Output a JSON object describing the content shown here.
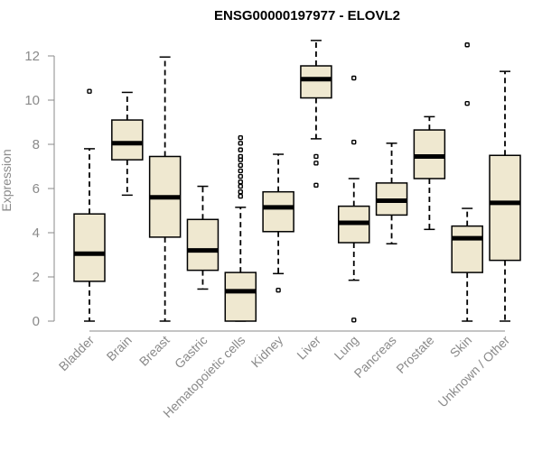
{
  "chart_data": {
    "type": "boxplot",
    "title": "ENSG00000197977 - ELOVL2",
    "xlabel": "",
    "ylabel": "Expression",
    "ylim": [
      0,
      12.5
    ],
    "yticks": [
      0,
      2,
      4,
      6,
      8,
      10,
      12
    ],
    "box_color": "#efe8d0",
    "categories": [
      "Bladder",
      "Brain",
      "Breast",
      "Gastric",
      "Hematopoietic cells",
      "Kidney",
      "Liver",
      "Lung",
      "Pancreas",
      "Prostate",
      "Skin",
      "Unknown / Other"
    ],
    "boxes": [
      {
        "min": 0.0,
        "q1": 1.8,
        "median": 3.05,
        "q3": 4.85,
        "max": 7.8,
        "outliers": [
          10.4
        ]
      },
      {
        "min": 5.7,
        "q1": 7.3,
        "median": 8.05,
        "q3": 9.1,
        "max": 10.35,
        "outliers": []
      },
      {
        "min": 0.0,
        "q1": 3.8,
        "median": 5.6,
        "q3": 7.45,
        "max": 11.95,
        "outliers": []
      },
      {
        "min": 1.45,
        "q1": 2.3,
        "median": 3.2,
        "q3": 4.6,
        "max": 6.1,
        "outliers": []
      },
      {
        "min": 0.0,
        "q1": 0.0,
        "median": 1.35,
        "q3": 2.2,
        "max": 5.15,
        "outliers": [
          5.65,
          5.85,
          6.1,
          6.3,
          6.55,
          6.8,
          7.05,
          7.3,
          7.45,
          7.75,
          8.05,
          8.3
        ]
      },
      {
        "min": 2.15,
        "q1": 4.05,
        "median": 5.15,
        "q3": 5.85,
        "max": 7.55,
        "outliers": [
          1.4
        ]
      },
      {
        "min": 8.25,
        "q1": 10.1,
        "median": 10.95,
        "q3": 11.55,
        "max": 12.7,
        "outliers": [
          7.45,
          7.15,
          6.15
        ]
      },
      {
        "min": 1.85,
        "q1": 3.55,
        "median": 4.45,
        "q3": 5.2,
        "max": 6.45,
        "outliers": [
          11.0,
          8.1,
          0.05
        ]
      },
      {
        "min": 3.5,
        "q1": 4.8,
        "median": 5.45,
        "q3": 6.25,
        "max": 8.05,
        "outliers": []
      },
      {
        "min": 4.15,
        "q1": 6.45,
        "median": 7.45,
        "q3": 8.65,
        "max": 9.25,
        "outliers": []
      },
      {
        "min": 0.0,
        "q1": 2.2,
        "median": 3.75,
        "q3": 4.3,
        "max": 5.1,
        "outliers": [
          12.5,
          9.85
        ]
      },
      {
        "min": 0.0,
        "q1": 2.75,
        "median": 5.35,
        "q3": 7.5,
        "max": 11.3,
        "outliers": []
      }
    ]
  }
}
